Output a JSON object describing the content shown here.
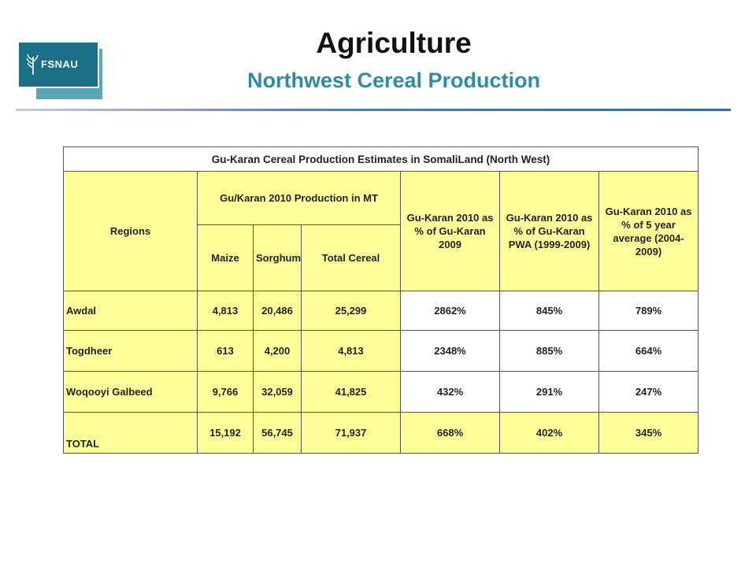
{
  "header": {
    "logo_text": "FSNAU",
    "title": "Agriculture",
    "subtitle": "Northwest Cereal Production"
  },
  "colors": {
    "title": "#111111",
    "subtitle": "#2d8ca6",
    "header_fill": "#ffff99",
    "logo_blue": "#1b6f86"
  },
  "table": {
    "caption": "Gu-Karan Cereal Production Estimates in SomaliLand (North West)",
    "head": {
      "regions": "Regions",
      "production_group": "Gu/Karan 2010 Production in MT",
      "maize": "Maize",
      "sorghum": "Sorghum",
      "total_cereal": "Total Cereal",
      "pct_2009": "Gu-Karan 2010 as % of Gu-Karan 2009",
      "pct_pwa": "Gu-Karan 2010 as % of Gu-Karan PWA (1999-2009)",
      "pct_5yr": "Gu-Karan 2010 as % of 5 year average (2004-2009)"
    },
    "rows": [
      {
        "region": "Awdal",
        "maize": "4,813",
        "sorghum": "20,486",
        "total": "25,299",
        "pct_2009": "2862%",
        "pct_pwa": "845%",
        "pct_5yr": "789%"
      },
      {
        "region": "Togdheer",
        "maize": "613",
        "sorghum": "4,200",
        "total": "4,813",
        "pct_2009": "2348%",
        "pct_pwa": "885%",
        "pct_5yr": "664%"
      },
      {
        "region": "Woqooyi Galbeed",
        "maize": "9,766",
        "sorghum": "32,059",
        "total": "41,825",
        "pct_2009": "432%",
        "pct_pwa": "291%",
        "pct_5yr": "247%"
      }
    ],
    "total_row": {
      "region": "TOTAL",
      "maize": "15,192",
      "sorghum": "56,745",
      "total": "71,937",
      "pct_2009": "668%",
      "pct_pwa": "402%",
      "pct_5yr": "345%"
    }
  }
}
